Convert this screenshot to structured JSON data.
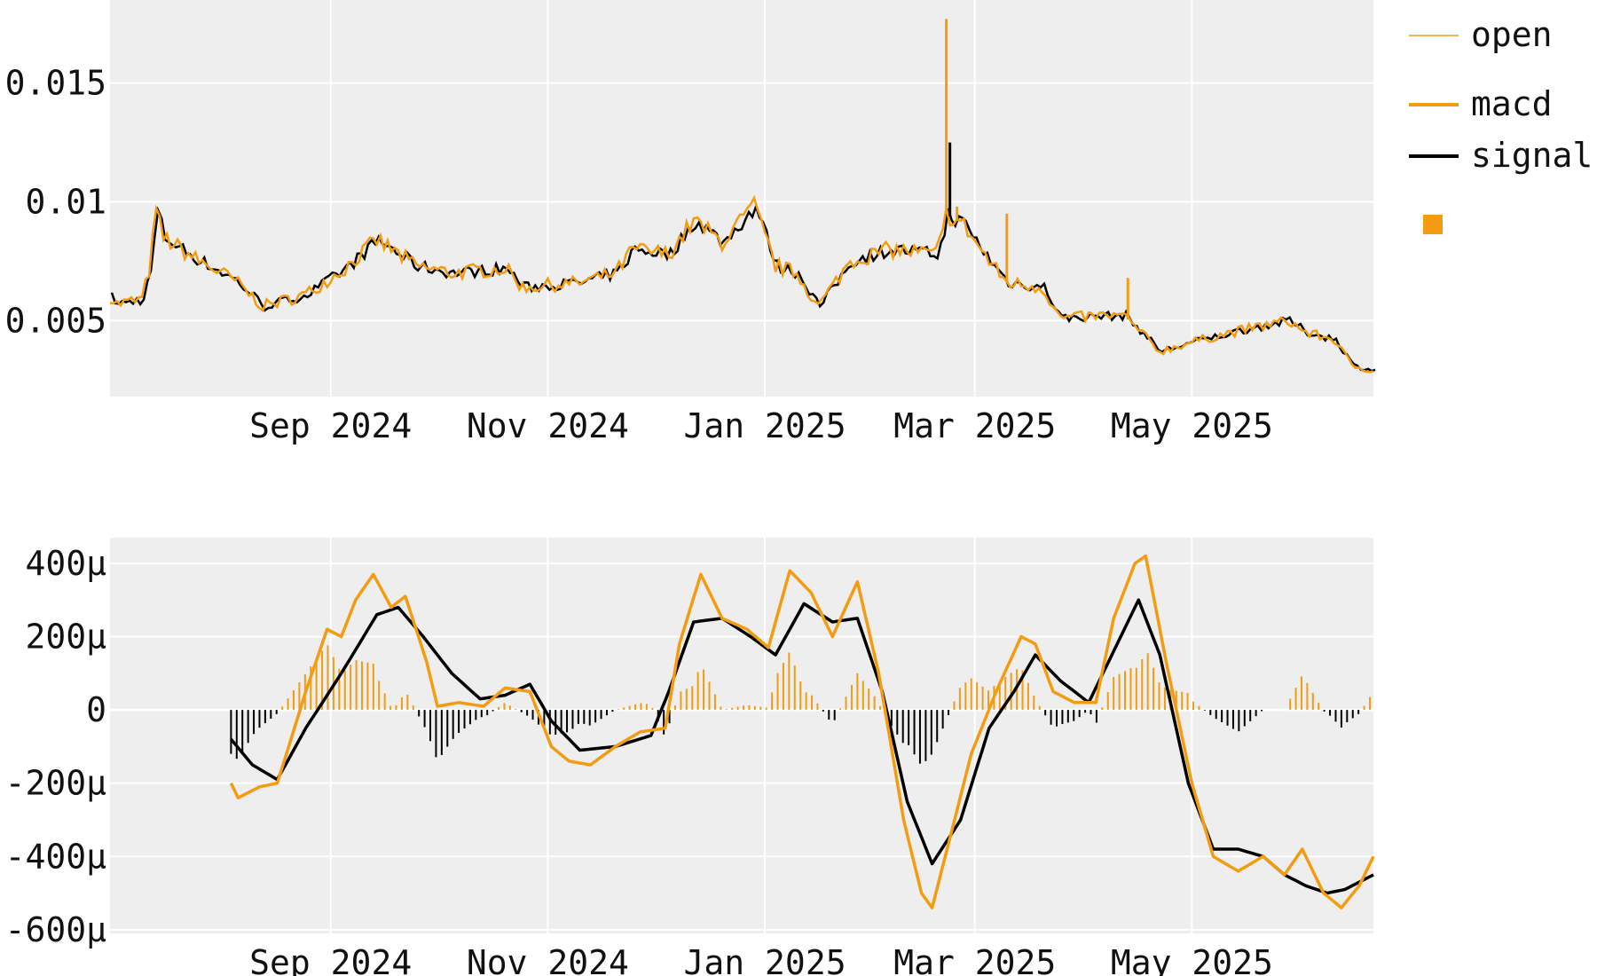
{
  "colors": {
    "orange": "#f39c12",
    "black": "#000000",
    "panel": "#eeeeee",
    "grid": "#ffffff"
  },
  "legend": [
    {
      "label": "open",
      "color": "#f39c12",
      "style": "thin-line"
    },
    {
      "label": "macd",
      "color": "#f39c12",
      "style": "line"
    },
    {
      "label": "signal",
      "color": "#000000",
      "style": "line"
    },
    {
      "label": "",
      "color": "#f39c12",
      "style": "square"
    }
  ],
  "chart_data": [
    {
      "type": "line",
      "ylim": [
        0.0018,
        0.0185
      ],
      "xlim": [
        "2024-07-01",
        "2025-06-21"
      ],
      "grid": true,
      "x_ticks": [
        {
          "date": "2024-09-01",
          "label": "Sep 2024"
        },
        {
          "date": "2024-11-01",
          "label": "Nov 2024"
        },
        {
          "date": "2025-01-01",
          "label": "Jan 2025"
        },
        {
          "date": "2025-03-01",
          "label": "Mar 2025"
        },
        {
          "date": "2025-05-01",
          "label": "May 2025"
        }
      ],
      "y_ticks": [
        {
          "value": 0.005,
          "label": "0.005"
        },
        {
          "value": 0.01,
          "label": "0.01"
        },
        {
          "value": 0.015,
          "label": "0.015"
        }
      ],
      "series": [
        {
          "name": "open",
          "anchors": [
            [
              "2024-07-01",
              0.006
            ],
            [
              "2024-07-03",
              0.0057
            ],
            [
              "2024-07-10",
              0.0059
            ],
            [
              "2024-07-12",
              0.0071
            ],
            [
              "2024-07-14",
              0.0096
            ],
            [
              "2024-07-16",
              0.0085
            ],
            [
              "2024-07-25",
              0.0076
            ],
            [
              "2024-08-05",
              0.0067
            ],
            [
              "2024-08-13",
              0.0056
            ],
            [
              "2024-08-25",
              0.0061
            ],
            [
              "2024-09-05",
              0.0072
            ],
            [
              "2024-09-14",
              0.0084
            ],
            [
              "2024-09-25",
              0.0073
            ],
            [
              "2024-10-05",
              0.007
            ],
            [
              "2024-10-20",
              0.0072
            ],
            [
              "2024-10-25",
              0.0064
            ],
            [
              "2024-11-10",
              0.0066
            ],
            [
              "2024-11-20",
              0.007
            ],
            [
              "2024-11-25",
              0.008
            ],
            [
              "2024-12-05",
              0.0078
            ],
            [
              "2024-12-12",
              0.0092
            ],
            [
              "2024-12-20",
              0.0083
            ],
            [
              "2024-12-29",
              0.0098
            ],
            [
              "2025-01-04",
              0.0073
            ],
            [
              "2025-01-10",
              0.007
            ],
            [
              "2025-01-16",
              0.0056
            ],
            [
              "2025-01-25",
              0.0075
            ],
            [
              "2025-02-05",
              0.008
            ],
            [
              "2025-02-18",
              0.0078
            ],
            [
              "2025-02-20",
              0.0086
            ],
            [
              "2025-02-21",
              0.0095
            ],
            [
              "2025-02-26",
              0.009
            ],
            [
              "2025-03-05",
              0.0075
            ],
            [
              "2025-03-10",
              0.0066
            ],
            [
              "2025-03-20",
              0.0064
            ],
            [
              "2025-03-25",
              0.0051
            ],
            [
              "2025-04-05",
              0.0052
            ],
            [
              "2025-04-12",
              0.0052
            ],
            [
              "2025-04-22",
              0.0037
            ],
            [
              "2025-05-01",
              0.0041
            ],
            [
              "2025-05-15",
              0.0046
            ],
            [
              "2025-05-28",
              0.005
            ],
            [
              "2025-06-02",
              0.0045
            ],
            [
              "2025-06-10",
              0.0042
            ],
            [
              "2025-06-15",
              0.0031
            ],
            [
              "2025-06-21",
              0.0029
            ]
          ]
        },
        {
          "name": "open spikes",
          "spikes": [
            [
              "2025-02-21",
              0.0177
            ],
            [
              "2025-02-22",
              0.0125
            ],
            [
              "2025-03-10",
              0.0095
            ],
            [
              "2025-04-13",
              0.0068
            ],
            [
              "2024-07-14",
              0.0096
            ],
            [
              "2025-02-24",
              0.0098
            ]
          ]
        }
      ]
    },
    {
      "type": "line+bar",
      "ylim": [
        -0.00061,
        0.00047
      ],
      "xlim": [
        "2024-07-01",
        "2025-06-21"
      ],
      "grid": true,
      "x_ticks": [
        {
          "date": "2024-09-01",
          "label": "Sep 2024"
        },
        {
          "date": "2024-11-01",
          "label": "Nov 2024"
        },
        {
          "date": "2025-01-01",
          "label": "Jan 2025"
        },
        {
          "date": "2025-03-01",
          "label": "Mar 2025"
        },
        {
          "date": "2025-05-01",
          "label": "May 2025"
        }
      ],
      "y_ticks": [
        {
          "value": 0.0004,
          "label": "400µ"
        },
        {
          "value": 0.0002,
          "label": "200µ"
        },
        {
          "value": 0,
          "label": "0"
        },
        {
          "value": -0.0002,
          "label": "-200µ"
        },
        {
          "value": -0.0004,
          "label": "-400µ"
        },
        {
          "value": -0.0006,
          "label": "-600µ"
        }
      ],
      "series": [
        {
          "name": "macd",
          "anchors": [
            [
              "2024-08-04",
              -0.0002
            ],
            [
              "2024-08-06",
              -0.00024
            ],
            [
              "2024-08-12",
              -0.00021
            ],
            [
              "2024-08-17",
              -0.0002
            ],
            [
              "2024-08-25",
              5e-05
            ],
            [
              "2024-08-31",
              0.00022
            ],
            [
              "2024-09-04",
              0.0002
            ],
            [
              "2024-09-08",
              0.0003
            ],
            [
              "2024-09-13",
              0.00037
            ],
            [
              "2024-09-18",
              0.00028
            ],
            [
              "2024-09-22",
              0.00031
            ],
            [
              "2024-09-28",
              0.00013
            ],
            [
              "2024-10-01",
              1e-05
            ],
            [
              "2024-10-07",
              2e-05
            ],
            [
              "2024-10-14",
              1e-05
            ],
            [
              "2024-10-20",
              6e-05
            ],
            [
              "2024-10-27",
              5e-05
            ],
            [
              "2024-11-02",
              -0.0001
            ],
            [
              "2024-11-07",
              -0.00014
            ],
            [
              "2024-11-13",
              -0.00015
            ],
            [
              "2024-11-20",
              -0.0001
            ],
            [
              "2024-11-27",
              -6e-05
            ],
            [
              "2024-12-04",
              -5e-05
            ],
            [
              "2024-12-08",
              0.00018
            ],
            [
              "2024-12-14",
              0.00037
            ],
            [
              "2024-12-20",
              0.00025
            ],
            [
              "2024-12-27",
              0.00022
            ],
            [
              "2025-01-02",
              0.00017
            ],
            [
              "2025-01-08",
              0.00038
            ],
            [
              "2025-01-14",
              0.00032
            ],
            [
              "2025-01-20",
              0.0002
            ],
            [
              "2025-01-27",
              0.00035
            ],
            [
              "2025-02-02",
              0.0001
            ],
            [
              "2025-02-09",
              -0.0003
            ],
            [
              "2025-02-14",
              -0.0005
            ],
            [
              "2025-02-17",
              -0.00054
            ],
            [
              "2025-02-22",
              -0.00035
            ],
            [
              "2025-02-28",
              -0.00012
            ],
            [
              "2025-03-07",
              5e-05
            ],
            [
              "2025-03-14",
              0.0002
            ],
            [
              "2025-03-18",
              0.00018
            ],
            [
              "2025-03-23",
              5e-05
            ],
            [
              "2025-03-29",
              2e-05
            ],
            [
              "2025-04-04",
              2e-05
            ],
            [
              "2025-04-09",
              0.00025
            ],
            [
              "2025-04-15",
              0.0004
            ],
            [
              "2025-04-18",
              0.00042
            ],
            [
              "2025-04-24",
              0.00012
            ],
            [
              "2025-05-01",
              -0.0002
            ],
            [
              "2025-05-07",
              -0.0004
            ],
            [
              "2025-05-14",
              -0.00044
            ],
            [
              "2025-05-21",
              -0.0004
            ],
            [
              "2025-05-27",
              -0.00045
            ],
            [
              "2025-06-01",
              -0.00038
            ],
            [
              "2025-06-07",
              -0.0005
            ],
            [
              "2025-06-12",
              -0.00054
            ],
            [
              "2025-06-17",
              -0.00048
            ],
            [
              "2025-06-21",
              -0.0004
            ]
          ]
        },
        {
          "name": "signal",
          "anchors": [
            [
              "2024-08-04",
              -8e-05
            ],
            [
              "2024-08-10",
              -0.00015
            ],
            [
              "2024-08-17",
              -0.00019
            ],
            [
              "2024-08-25",
              -5e-05
            ],
            [
              "2024-09-04",
              0.0001
            ],
            [
              "2024-09-14",
              0.00026
            ],
            [
              "2024-09-20",
              0.00028
            ],
            [
              "2024-09-27",
              0.0002
            ],
            [
              "2024-10-05",
              0.0001
            ],
            [
              "2024-10-13",
              3e-05
            ],
            [
              "2024-10-20",
              4e-05
            ],
            [
              "2024-10-27",
              7e-05
            ],
            [
              "2024-11-02",
              -3e-05
            ],
            [
              "2024-11-10",
              -0.00011
            ],
            [
              "2024-11-20",
              -0.0001
            ],
            [
              "2024-11-30",
              -7e-05
            ],
            [
              "2024-12-05",
              5e-05
            ],
            [
              "2024-12-12",
              0.00024
            ],
            [
              "2024-12-20",
              0.00025
            ],
            [
              "2024-12-28",
              0.0002
            ],
            [
              "2025-01-04",
              0.00015
            ],
            [
              "2025-01-12",
              0.00029
            ],
            [
              "2025-01-20",
              0.00024
            ],
            [
              "2025-01-27",
              0.00025
            ],
            [
              "2025-02-03",
              5e-05
            ],
            [
              "2025-02-10",
              -0.00025
            ],
            [
              "2025-02-17",
              -0.00042
            ],
            [
              "2025-02-25",
              -0.0003
            ],
            [
              "2025-03-05",
              -5e-05
            ],
            [
              "2025-03-12",
              5e-05
            ],
            [
              "2025-03-18",
              0.00015
            ],
            [
              "2025-03-25",
              8e-05
            ],
            [
              "2025-04-02",
              2e-05
            ],
            [
              "2025-04-10",
              0.00018
            ],
            [
              "2025-04-16",
              0.0003
            ],
            [
              "2025-04-22",
              0.00015
            ],
            [
              "2025-04-30",
              -0.0002
            ],
            [
              "2025-05-07",
              -0.00038
            ],
            [
              "2025-05-14",
              -0.00038
            ],
            [
              "2025-05-21",
              -0.0004
            ],
            [
              "2025-05-27",
              -0.00045
            ],
            [
              "2025-06-02",
              -0.00048
            ],
            [
              "2025-06-08",
              -0.0005
            ],
            [
              "2025-06-13",
              -0.00049
            ],
            [
              "2025-06-21",
              -0.00045
            ]
          ]
        }
      ]
    }
  ]
}
